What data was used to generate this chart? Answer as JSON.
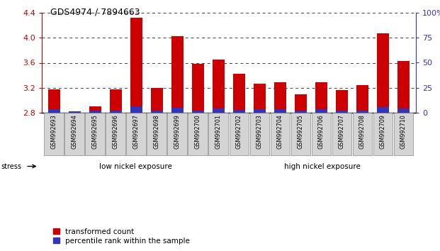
{
  "title": "GDS4974 / 7894663",
  "samples": [
    "GSM992693",
    "GSM992694",
    "GSM992695",
    "GSM992696",
    "GSM992697",
    "GSM992698",
    "GSM992699",
    "GSM992700",
    "GSM992701",
    "GSM992702",
    "GSM992703",
    "GSM992704",
    "GSM992705",
    "GSM992706",
    "GSM992707",
    "GSM992708",
    "GSM992709",
    "GSM992710"
  ],
  "red_values": [
    3.18,
    2.82,
    2.9,
    3.18,
    4.32,
    3.2,
    4.02,
    3.58,
    3.65,
    3.42,
    3.27,
    3.29,
    3.1,
    3.29,
    3.16,
    3.24,
    4.07,
    3.63
  ],
  "blue_heights": [
    0.055,
    0.03,
    0.04,
    0.04,
    0.1,
    0.04,
    0.085,
    0.04,
    0.07,
    0.05,
    0.055,
    0.055,
    0.04,
    0.055,
    0.04,
    0.04,
    0.09,
    0.075
  ],
  "ymin": 2.8,
  "ymax": 4.4,
  "yticks": [
    2.8,
    3.2,
    3.6,
    4.0,
    4.4
  ],
  "right_yticks": [
    0,
    25,
    50,
    75,
    100
  ],
  "right_ylabels": [
    "0",
    "25",
    "50",
    "75",
    "100%"
  ],
  "bar_color_red": "#cc0000",
  "bar_color_blue": "#3333bb",
  "low_nickel_count": 9,
  "low_nickel_label": "low nickel exposure",
  "high_nickel_label": "high nickel exposure",
  "stress_label": "stress",
  "legend_red": "transformed count",
  "legend_blue": "percentile rank within the sample",
  "left_axis_color": "#cc0000",
  "right_axis_color": "#3333bb",
  "low_bg": "#bbeeaa",
  "high_bg": "#44cc33",
  "sample_box_color": "#d4d4d4"
}
